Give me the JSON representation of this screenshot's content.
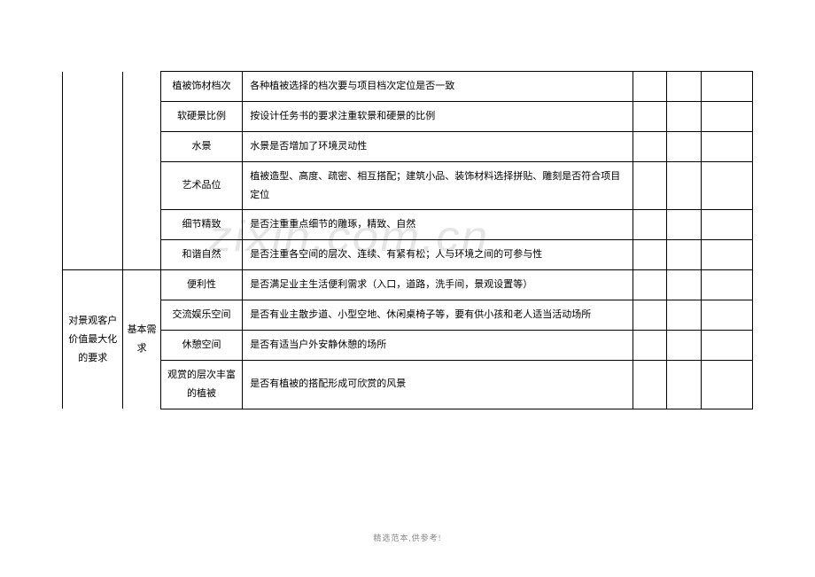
{
  "watermark": "zixin.com.cn",
  "footer": "精选范本,供参考!",
  "table": {
    "border_color": "#000000",
    "font_size": 11,
    "background_color": "#ffffff",
    "columns": {
      "col1_w": 68,
      "col2_w": 42,
      "col3_w": 92,
      "col4_w": 438,
      "col5_w": 38,
      "col6_w": 38,
      "col7_w": 58
    },
    "section1": {
      "rows": [
        {
          "c3": "植被饰材档次",
          "c4": "各种植被选择的档次要与项目档次定位是否一致"
        },
        {
          "c3": "软硬景比例",
          "c4": "按设计任务书的要求注重软景和硬景的比例"
        },
        {
          "c3": "水景",
          "c4": "水景是否增加了环境灵动性"
        },
        {
          "c3": "艺术品位",
          "c4": "植被造型、高度、疏密、相互搭配；建筑小品、装饰材料选择拼贴、雕刻是否符合项目定位"
        },
        {
          "c3": "细节精致",
          "c4": "是否注重重点细节的雕琢，精致、自然"
        },
        {
          "c3": "和谐自然",
          "c4": "是否注重各空间的层次、连续、有紧有松；人与环境之间的可参与性"
        }
      ]
    },
    "section2": {
      "c1": "对景观客户价值最大化的要求",
      "c2": "基本需求",
      "rows": [
        {
          "c3": "便利性",
          "c4": "是否满足业主生活便利需求（入口，道路，洗手间，景观设置等）"
        },
        {
          "c3": "交流娱乐空间",
          "c4": "是否有业主散步道、小型空地、休闲桌椅子等，要有供小孩和老人适当活动场所"
        },
        {
          "c3": "休憩空间",
          "c4": "是否有适当户外安静休憩的场所"
        },
        {
          "c3": "观赏的层次丰富的植被",
          "c4": "是否有植被的搭配形成可欣赏的风景"
        }
      ]
    }
  }
}
